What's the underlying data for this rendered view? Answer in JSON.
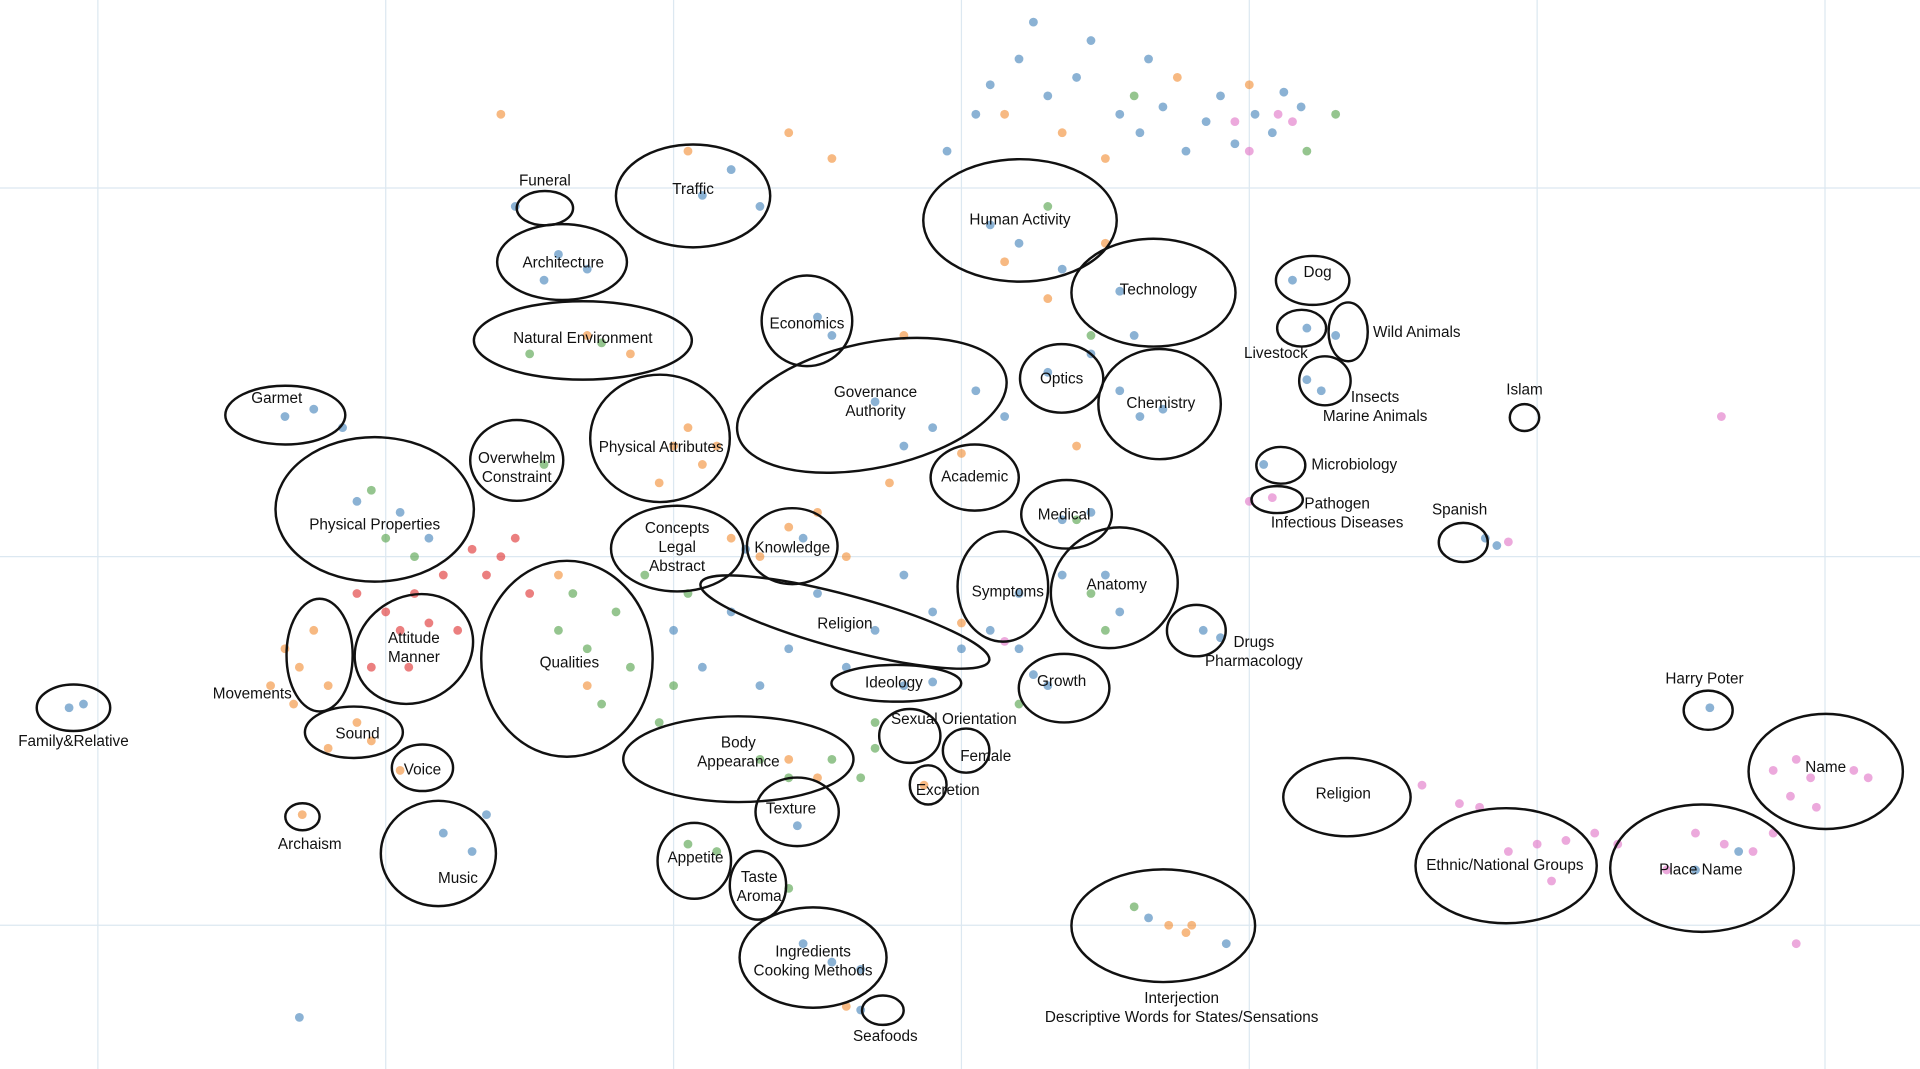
{
  "chart_data": {
    "type": "scatter",
    "xlim": [
      -3.34,
      3.33
    ],
    "ylim": [
      -1.39,
      1.51
    ],
    "xticks": [
      -3,
      -2,
      -1,
      0,
      1,
      2,
      3
    ],
    "yticks": [
      -1,
      0,
      1
    ],
    "grid": true,
    "series": [
      {
        "color": "#3d7fb8",
        "x": [
          0.55,
          0.62,
          0.7,
          0.78,
          0.85,
          0.9,
          0.95,
          1.02,
          1.08,
          1.12,
          1.18,
          0.4,
          0.3,
          0.2,
          0.1,
          0.05,
          -0.05,
          0.45,
          0.25,
          0.65,
          0.1,
          0.2,
          0.35,
          0.55,
          0.6,
          0.45,
          1.15,
          1.2,
          1.3,
          1.2,
          1.25,
          0.55,
          0.62,
          0.7,
          0.3,
          -0.3,
          -0.1,
          0.05,
          -0.2,
          0.15,
          -0.5,
          -0.45,
          -0.9,
          -0.8,
          -0.7,
          -1.4,
          -1.3,
          -1.45,
          -1.55,
          -2.35,
          -2.25,
          -2.15,
          -2.1,
          -1.95,
          -1.85,
          -1.0,
          -0.9,
          -0.8,
          -0.7,
          -0.6,
          -0.5,
          -0.4,
          -0.3,
          -0.2,
          -0.1,
          0.0,
          -0.55,
          -0.75,
          0.1,
          0.2,
          -0.2,
          -0.1,
          0.2,
          0.35,
          0.5,
          0.55,
          0.35,
          0.45,
          0.3,
          0.25,
          0.84,
          0.9,
          1.05,
          -1.8,
          -1.7,
          -1.65,
          -0.55,
          -0.45,
          -0.35,
          -0.35,
          0.65,
          0.92,
          -3.1,
          -3.05,
          2.6,
          1.82,
          1.86,
          2.55,
          2.7,
          -0.57,
          -2.3
        ],
        "y": [
          1.2,
          1.15,
          1.22,
          1.1,
          1.18,
          1.25,
          1.12,
          1.2,
          1.15,
          1.26,
          1.22,
          1.3,
          1.25,
          1.35,
          1.28,
          1.2,
          1.1,
          1.4,
          1.45,
          1.35,
          0.9,
          0.85,
          0.78,
          0.72,
          0.6,
          0.55,
          0.75,
          0.62,
          0.6,
          0.48,
          0.45,
          0.45,
          0.38,
          0.4,
          0.5,
          0.42,
          0.35,
          0.45,
          0.3,
          0.38,
          0.65,
          0.6,
          0.98,
          1.05,
          0.95,
          0.82,
          0.78,
          0.75,
          0.95,
          0.38,
          0.4,
          0.35,
          0.15,
          0.12,
          0.05,
          -0.2,
          -0.3,
          -0.15,
          -0.35,
          -0.25,
          -0.1,
          -0.3,
          -0.2,
          -0.05,
          -0.15,
          -0.25,
          0.05,
          0.02,
          -0.2,
          -0.25,
          -0.35,
          -0.34,
          -0.1,
          -0.05,
          -0.05,
          -0.15,
          0.1,
          0.12,
          -0.35,
          -0.32,
          -0.2,
          -0.22,
          0.25,
          -0.75,
          -0.8,
          -0.7,
          -1.05,
          -1.1,
          -1.12,
          -1.23,
          -0.98,
          -1.05,
          -0.41,
          -0.4,
          -0.41,
          0.05,
          0.03,
          -0.85,
          -0.8,
          -0.73,
          -1.25
        ]
      },
      {
        "color": "#f28a2e",
        "x": [
          -2.35,
          -2.3,
          -2.4,
          -2.25,
          -2.32,
          -2.2,
          -2.1,
          -2.05,
          -2.2,
          -2.29,
          -1.0,
          -0.9,
          -0.95,
          -0.85,
          -1.05,
          -0.8,
          -0.7,
          -0.6,
          -0.5,
          -0.4,
          -0.95,
          -0.6,
          -0.45,
          0.15,
          0.3,
          0.5,
          0.35,
          0.5,
          0.75,
          1.0,
          0.15,
          -0.25,
          0.0,
          -1.3,
          -1.15,
          -0.6,
          -0.5,
          0.72,
          0.78,
          0.8,
          -0.4,
          -0.13,
          -1.95,
          -1.6,
          0.0,
          -1.4,
          -1.3,
          -0.2,
          0.4
        ],
        "y": [
          -0.25,
          -0.3,
          -0.35,
          -0.2,
          -0.4,
          -0.35,
          -0.45,
          -0.5,
          -0.52,
          -0.7,
          0.3,
          0.25,
          0.35,
          0.3,
          0.2,
          0.05,
          0.0,
          0.08,
          0.12,
          0.0,
          1.1,
          1.15,
          1.08,
          0.8,
          0.7,
          0.85,
          1.15,
          1.08,
          1.3,
          1.28,
          1.2,
          0.2,
          0.28,
          0.6,
          0.55,
          -0.55,
          -0.6,
          -1.0,
          -1.02,
          -1.0,
          -1.22,
          -0.62,
          -0.58,
          1.2,
          -0.18,
          -0.05,
          -0.35,
          0.6,
          0.3
        ]
      },
      {
        "color": "#4f9e45",
        "x": [
          -1.35,
          -1.3,
          -1.2,
          -1.15,
          -1.1,
          -1.25,
          -1.05,
          -1.0,
          -0.95,
          -1.4,
          -0.7,
          -0.6,
          -0.45,
          -0.35,
          -0.3,
          -0.95,
          -0.85,
          -0.6,
          -2.0,
          -1.9,
          -2.05,
          -1.45,
          0.45,
          0.5,
          0.3,
          0.45,
          -1.5,
          -1.25,
          0.6,
          1.2,
          1.3,
          0.4,
          0.6,
          -0.3,
          0.2
        ],
        "y": [
          -0.1,
          -0.25,
          -0.15,
          -0.3,
          -0.05,
          -0.4,
          -0.45,
          -0.35,
          -0.1,
          -0.2,
          -0.55,
          -0.6,
          -0.55,
          -0.6,
          -0.52,
          -0.78,
          -0.8,
          -0.9,
          0.05,
          0.0,
          0.18,
          0.25,
          -0.1,
          -0.2,
          0.95,
          0.6,
          0.55,
          0.58,
          1.25,
          1.1,
          1.2,
          0.1,
          -0.95,
          -0.45,
          -0.4
        ]
      },
      {
        "color": "#dd2a2a",
        "x": [
          -2.0,
          -1.95,
          -1.9,
          -1.85,
          -1.92,
          -2.05,
          -1.8,
          -2.1,
          -1.75,
          -1.6,
          -1.55,
          -1.65,
          -1.7,
          -1.5
        ],
        "y": [
          -0.15,
          -0.2,
          -0.1,
          -0.18,
          -0.3,
          -0.3,
          -0.05,
          -0.1,
          -0.2,
          0.0,
          0.05,
          -0.05,
          0.02,
          -0.1
        ]
      },
      {
        "color": "#e070c4",
        "x": [
          2.9,
          2.95,
          2.88,
          2.97,
          3.1,
          2.82,
          3.15,
          2.55,
          2.65,
          2.75,
          2.82,
          2.45,
          1.9,
          2.0,
          2.1,
          2.2,
          2.28,
          2.05,
          1.6,
          1.73,
          1.8,
          2.64,
          2.9,
          1.0,
          1.1,
          1.15,
          0.95,
          0.15,
          1.0,
          1.08,
          1.9
        ],
        "y": [
          -0.55,
          -0.6,
          -0.65,
          -0.68,
          -0.58,
          -0.58,
          -0.6,
          -0.75,
          -0.78,
          -0.8,
          -0.75,
          -0.85,
          -0.8,
          -0.78,
          -0.77,
          -0.75,
          -0.78,
          -0.88,
          -0.62,
          -0.67,
          -0.68,
          0.38,
          -1.05,
          1.1,
          1.2,
          1.18,
          1.18,
          -0.23,
          0.15,
          0.16,
          0.04
        ]
      }
    ],
    "annotations": [
      [
        "Funeral"
      ],
      [
        "Traffic"
      ],
      [
        "Architecture"
      ],
      [
        "Human Activity"
      ],
      [
        "Technology"
      ],
      [
        "Dog"
      ],
      [
        "Wild Animals"
      ],
      [
        "Livestock"
      ],
      [
        "Economics"
      ],
      [
        "Natural Environment"
      ],
      [
        "Garmet"
      ],
      [
        "Governance",
        "Authority"
      ],
      [
        "Optics"
      ],
      [
        "Chemistry"
      ],
      [
        "Insects",
        "Marine Animals"
      ],
      [
        "Islam"
      ],
      [
        "Overwhelm",
        "Constraint"
      ],
      [
        "Physical Attributes"
      ],
      [
        "Microbiology"
      ],
      [
        "Physical Properties"
      ],
      [
        "Academic"
      ],
      [
        "Pathogen",
        "Infectious Diseases"
      ],
      [
        "Spanish"
      ],
      [
        "Medical"
      ],
      [
        "Concepts",
        "Legal",
        "Abstract"
      ],
      [
        "Knowledge"
      ],
      [
        "Symptoms"
      ],
      [
        "Anatomy"
      ],
      [
        "Religion"
      ],
      [
        "Drugs",
        "Pharmacology"
      ],
      [
        "Attitude",
        "Manner"
      ],
      [
        "Qualities"
      ],
      [
        "Movements"
      ],
      [
        "Ideology"
      ],
      [
        "Growth"
      ],
      [
        "Family&Relative"
      ],
      [
        "Harry Poter"
      ],
      [
        "Sound"
      ],
      [
        "Sexual Orientation"
      ],
      [
        "Body",
        "Appearance"
      ],
      [
        "Female"
      ],
      [
        "Name"
      ],
      [
        "Voice"
      ],
      [
        "Excretion"
      ],
      [
        "Religion"
      ],
      [
        "Texture"
      ],
      [
        "Archaism"
      ],
      [
        "Appetite"
      ],
      [
        "Ethnic/National Groups"
      ],
      [
        "Place Name"
      ],
      [
        "Music"
      ],
      [
        "Taste",
        "Aroma"
      ],
      [
        "Ingredients",
        "Cooking Methods"
      ],
      [
        "Interjection",
        "Descriptive Words for States/Sensations"
      ],
      [
        "Seafoods"
      ]
    ]
  }
}
